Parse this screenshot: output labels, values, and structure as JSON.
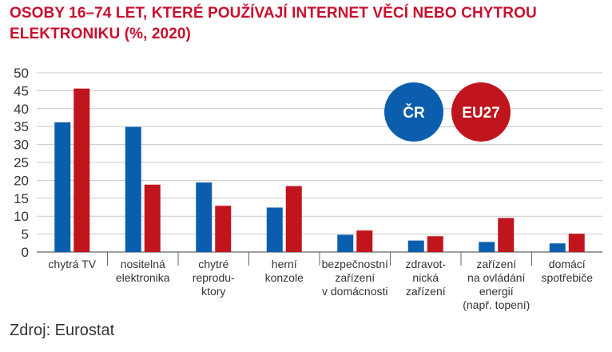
{
  "chart_data": {
    "type": "bar",
    "title_lines": [
      "OSOBY 16–74 LET, KTERÉ POUŽÍVAJÍ INTERNET VĚCÍ NEBO CHYTROU",
      "ELEKTRONIKU (%, 2020)"
    ],
    "categories": [
      [
        "chytrá TV"
      ],
      [
        "nositelná",
        "elektronika"
      ],
      [
        "chytré",
        "reprodu-",
        "ktory"
      ],
      [
        "herní",
        "konzole"
      ],
      [
        "bezpečnostní",
        "zařízení",
        "v domácnosti"
      ],
      [
        "zdravot-",
        "nická",
        "zařízení"
      ],
      [
        "zařízení",
        "na ovládání",
        "energií",
        "(např. topení)"
      ],
      [
        "domácí",
        "spotřebiče"
      ]
    ],
    "series": [
      {
        "name": "ČR",
        "color": "#0a5ead",
        "values": [
          36.2,
          34.9,
          19.4,
          12.4,
          4.8,
          3.2,
          2.8,
          2.4
        ]
      },
      {
        "name": "EU27",
        "color": "#c0151d",
        "values": [
          45.6,
          18.8,
          12.9,
          18.4,
          6.0,
          4.4,
          9.5,
          5.1
        ]
      }
    ],
    "ylim": [
      0,
      50
    ],
    "yticks": [
      0,
      5,
      10,
      15,
      20,
      25,
      30,
      35,
      40,
      45,
      50
    ],
    "grid": true,
    "legend": "top-right"
  },
  "source": "Zdroj: Eurostat"
}
